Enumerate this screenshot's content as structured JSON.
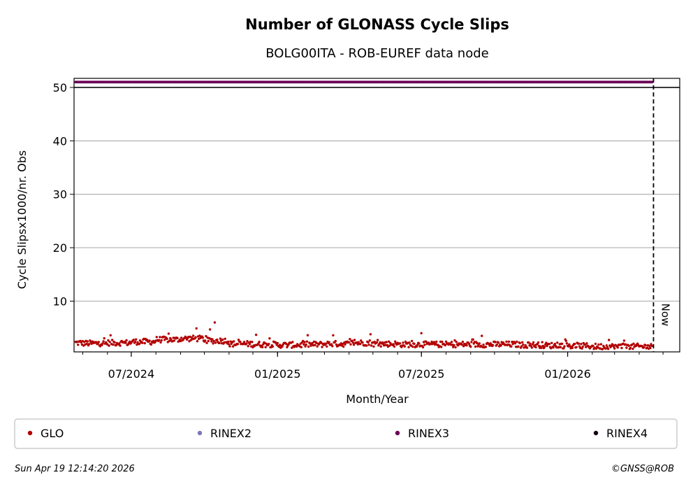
{
  "chart_data": {
    "type": "scatter",
    "title": "Number of GLONASS Cycle Slips",
    "subtitle": "BOLG00ITA - ROB-EUREF data node",
    "xlabel": "Month/Year",
    "ylabel": "Cycle Slipsx1000/nr. Obs",
    "x_range": [
      "2024-04-20",
      "2026-05-22"
    ],
    "ylim": [
      0.5,
      51.7
    ],
    "x_ticks": [
      {
        "date": "2024-07-01",
        "label": "07/2024"
      },
      {
        "date": "2025-01-01",
        "label": "01/2025"
      },
      {
        "date": "2025-07-01",
        "label": "07/2025"
      },
      {
        "date": "2026-01-01",
        "label": "01/2026"
      }
    ],
    "minor_ticks_monthly": true,
    "y_ticks": [
      10,
      20,
      30,
      40,
      50
    ],
    "grid": "horizontal",
    "now_marker": {
      "date": "2026-04-19",
      "label": "Now"
    },
    "series": [
      {
        "name": "GLO",
        "color": "#b30000",
        "start": "2024-04-22",
        "end": "2026-04-17",
        "step_days": 1,
        "monthly_average_values": [
          2.2,
          2.1,
          2.2,
          2.4,
          2.8,
          3.0,
          2.6,
          2.0,
          1.9,
          1.8,
          1.9,
          2.0,
          2.2,
          2.0,
          1.9,
          1.9,
          1.9,
          1.9,
          1.9,
          1.8,
          1.7,
          1.6,
          1.5,
          1.5,
          1.5
        ],
        "peaks": [
          {
            "date": "2024-06-05",
            "value": 3.6
          },
          {
            "date": "2024-09-21",
            "value": 4.9
          },
          {
            "date": "2024-10-08",
            "value": 4.7
          },
          {
            "date": "2024-10-14",
            "value": 6.0
          },
          {
            "date": "2024-12-05",
            "value": 3.7
          },
          {
            "date": "2025-03-12",
            "value": 3.6
          },
          {
            "date": "2025-04-28",
            "value": 3.8
          },
          {
            "date": "2025-07-01",
            "value": 4.0
          },
          {
            "date": "2025-09-15",
            "value": 3.5
          }
        ]
      },
      {
        "name": "RINEX2",
        "color": "#7b78b8"
      },
      {
        "name": "RINEX3",
        "color": "#6b0057",
        "start": "2024-04-22",
        "end": "2026-04-17",
        "step_days": 1,
        "value": 51
      },
      {
        "name": "RINEX4",
        "color": "#1a0013"
      }
    ]
  },
  "footer": {
    "timestamp": "Sun Apr 19 12:14:20 2026",
    "credit": "©GNSS@ROB"
  }
}
